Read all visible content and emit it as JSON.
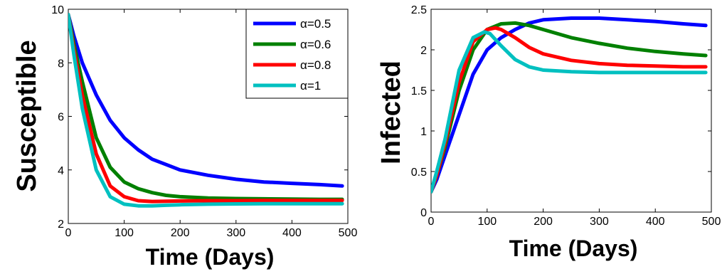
{
  "chart_data": [
    {
      "type": "line",
      "xlabel": "Time (Days)",
      "ylabel": "Susceptible",
      "xlim": [
        0,
        500
      ],
      "ylim": [
        2,
        10
      ],
      "xticks": [
        0,
        100,
        200,
        300,
        400,
        500
      ],
      "yticks": [
        2,
        4,
        6,
        8,
        10
      ],
      "grid": false,
      "legend": "top-right",
      "series": [
        {
          "name": "α=0.5",
          "color": "#0000ff",
          "x": [
            0,
            10,
            25,
            50,
            75,
            100,
            125,
            150,
            175,
            200,
            250,
            300,
            350,
            400,
            450,
            490
          ],
          "y": [
            9.8,
            9.0,
            8.0,
            6.8,
            5.85,
            5.2,
            4.75,
            4.4,
            4.2,
            4.0,
            3.8,
            3.65,
            3.55,
            3.5,
            3.45,
            3.4
          ]
        },
        {
          "name": "α=0.6",
          "color": "#008000",
          "x": [
            0,
            10,
            25,
            50,
            75,
            100,
            125,
            150,
            175,
            200,
            250,
            300,
            350,
            400,
            450,
            490
          ],
          "y": [
            9.8,
            8.7,
            7.3,
            5.2,
            4.1,
            3.55,
            3.3,
            3.15,
            3.05,
            3.0,
            2.95,
            2.93,
            2.92,
            2.91,
            2.9,
            2.9
          ]
        },
        {
          "name": "α=0.8",
          "color": "#ff0000",
          "x": [
            0,
            10,
            25,
            50,
            75,
            100,
            125,
            150,
            175,
            200,
            250,
            300,
            350,
            400,
            450,
            490
          ],
          "y": [
            9.8,
            8.5,
            6.8,
            4.6,
            3.4,
            3.0,
            2.85,
            2.82,
            2.83,
            2.84,
            2.85,
            2.85,
            2.86,
            2.86,
            2.86,
            2.86
          ]
        },
        {
          "name": "α=1",
          "color": "#00c0c0",
          "x": [
            0,
            10,
            25,
            50,
            75,
            100,
            125,
            150,
            175,
            200,
            250,
            300,
            350,
            400,
            450,
            490
          ],
          "y": [
            9.8,
            8.3,
            6.3,
            4.0,
            3.0,
            2.72,
            2.66,
            2.66,
            2.68,
            2.7,
            2.72,
            2.73,
            2.74,
            2.74,
            2.74,
            2.74
          ]
        }
      ]
    },
    {
      "type": "line",
      "xlabel": "Time (Days)",
      "ylabel": "Infected",
      "xlim": [
        0,
        500
      ],
      "ylim": [
        0,
        2.5
      ],
      "xticks": [
        0,
        100,
        200,
        300,
        400,
        500
      ],
      "yticks": [
        0,
        0.5,
        1,
        1.5,
        2,
        2.5
      ],
      "grid": false,
      "series": [
        {
          "name": "α=0.5",
          "color": "#0000ff",
          "x": [
            0,
            10,
            25,
            50,
            75,
            100,
            125,
            150,
            175,
            200,
            250,
            270,
            300,
            350,
            400,
            450,
            490
          ],
          "y": [
            0.25,
            0.4,
            0.7,
            1.2,
            1.7,
            2.0,
            2.15,
            2.25,
            2.33,
            2.37,
            2.39,
            2.39,
            2.39,
            2.37,
            2.35,
            2.32,
            2.3
          ]
        },
        {
          "name": "α=0.6",
          "color": "#008000",
          "x": [
            0,
            10,
            25,
            50,
            75,
            100,
            125,
            150,
            175,
            200,
            250,
            300,
            350,
            400,
            450,
            490
          ],
          "y": [
            0.25,
            0.45,
            0.8,
            1.5,
            2.0,
            2.25,
            2.32,
            2.33,
            2.3,
            2.25,
            2.15,
            2.08,
            2.02,
            1.98,
            1.95,
            1.93
          ]
        },
        {
          "name": "α=0.8",
          "color": "#ff0000",
          "x": [
            0,
            10,
            25,
            50,
            75,
            100,
            115,
            125,
            150,
            175,
            200,
            250,
            300,
            350,
            400,
            450,
            490
          ],
          "y": [
            0.25,
            0.45,
            0.85,
            1.6,
            2.1,
            2.25,
            2.27,
            2.25,
            2.15,
            2.03,
            1.95,
            1.87,
            1.83,
            1.81,
            1.8,
            1.79,
            1.79
          ]
        },
        {
          "name": "α=1",
          "color": "#00c0c0",
          "x": [
            0,
            10,
            25,
            50,
            75,
            95,
            105,
            125,
            150,
            175,
            200,
            250,
            300,
            350,
            400,
            450,
            490
          ],
          "y": [
            0.25,
            0.5,
            0.9,
            1.75,
            2.15,
            2.22,
            2.2,
            2.05,
            1.88,
            1.79,
            1.75,
            1.73,
            1.72,
            1.72,
            1.72,
            1.72,
            1.72
          ]
        }
      ]
    }
  ]
}
